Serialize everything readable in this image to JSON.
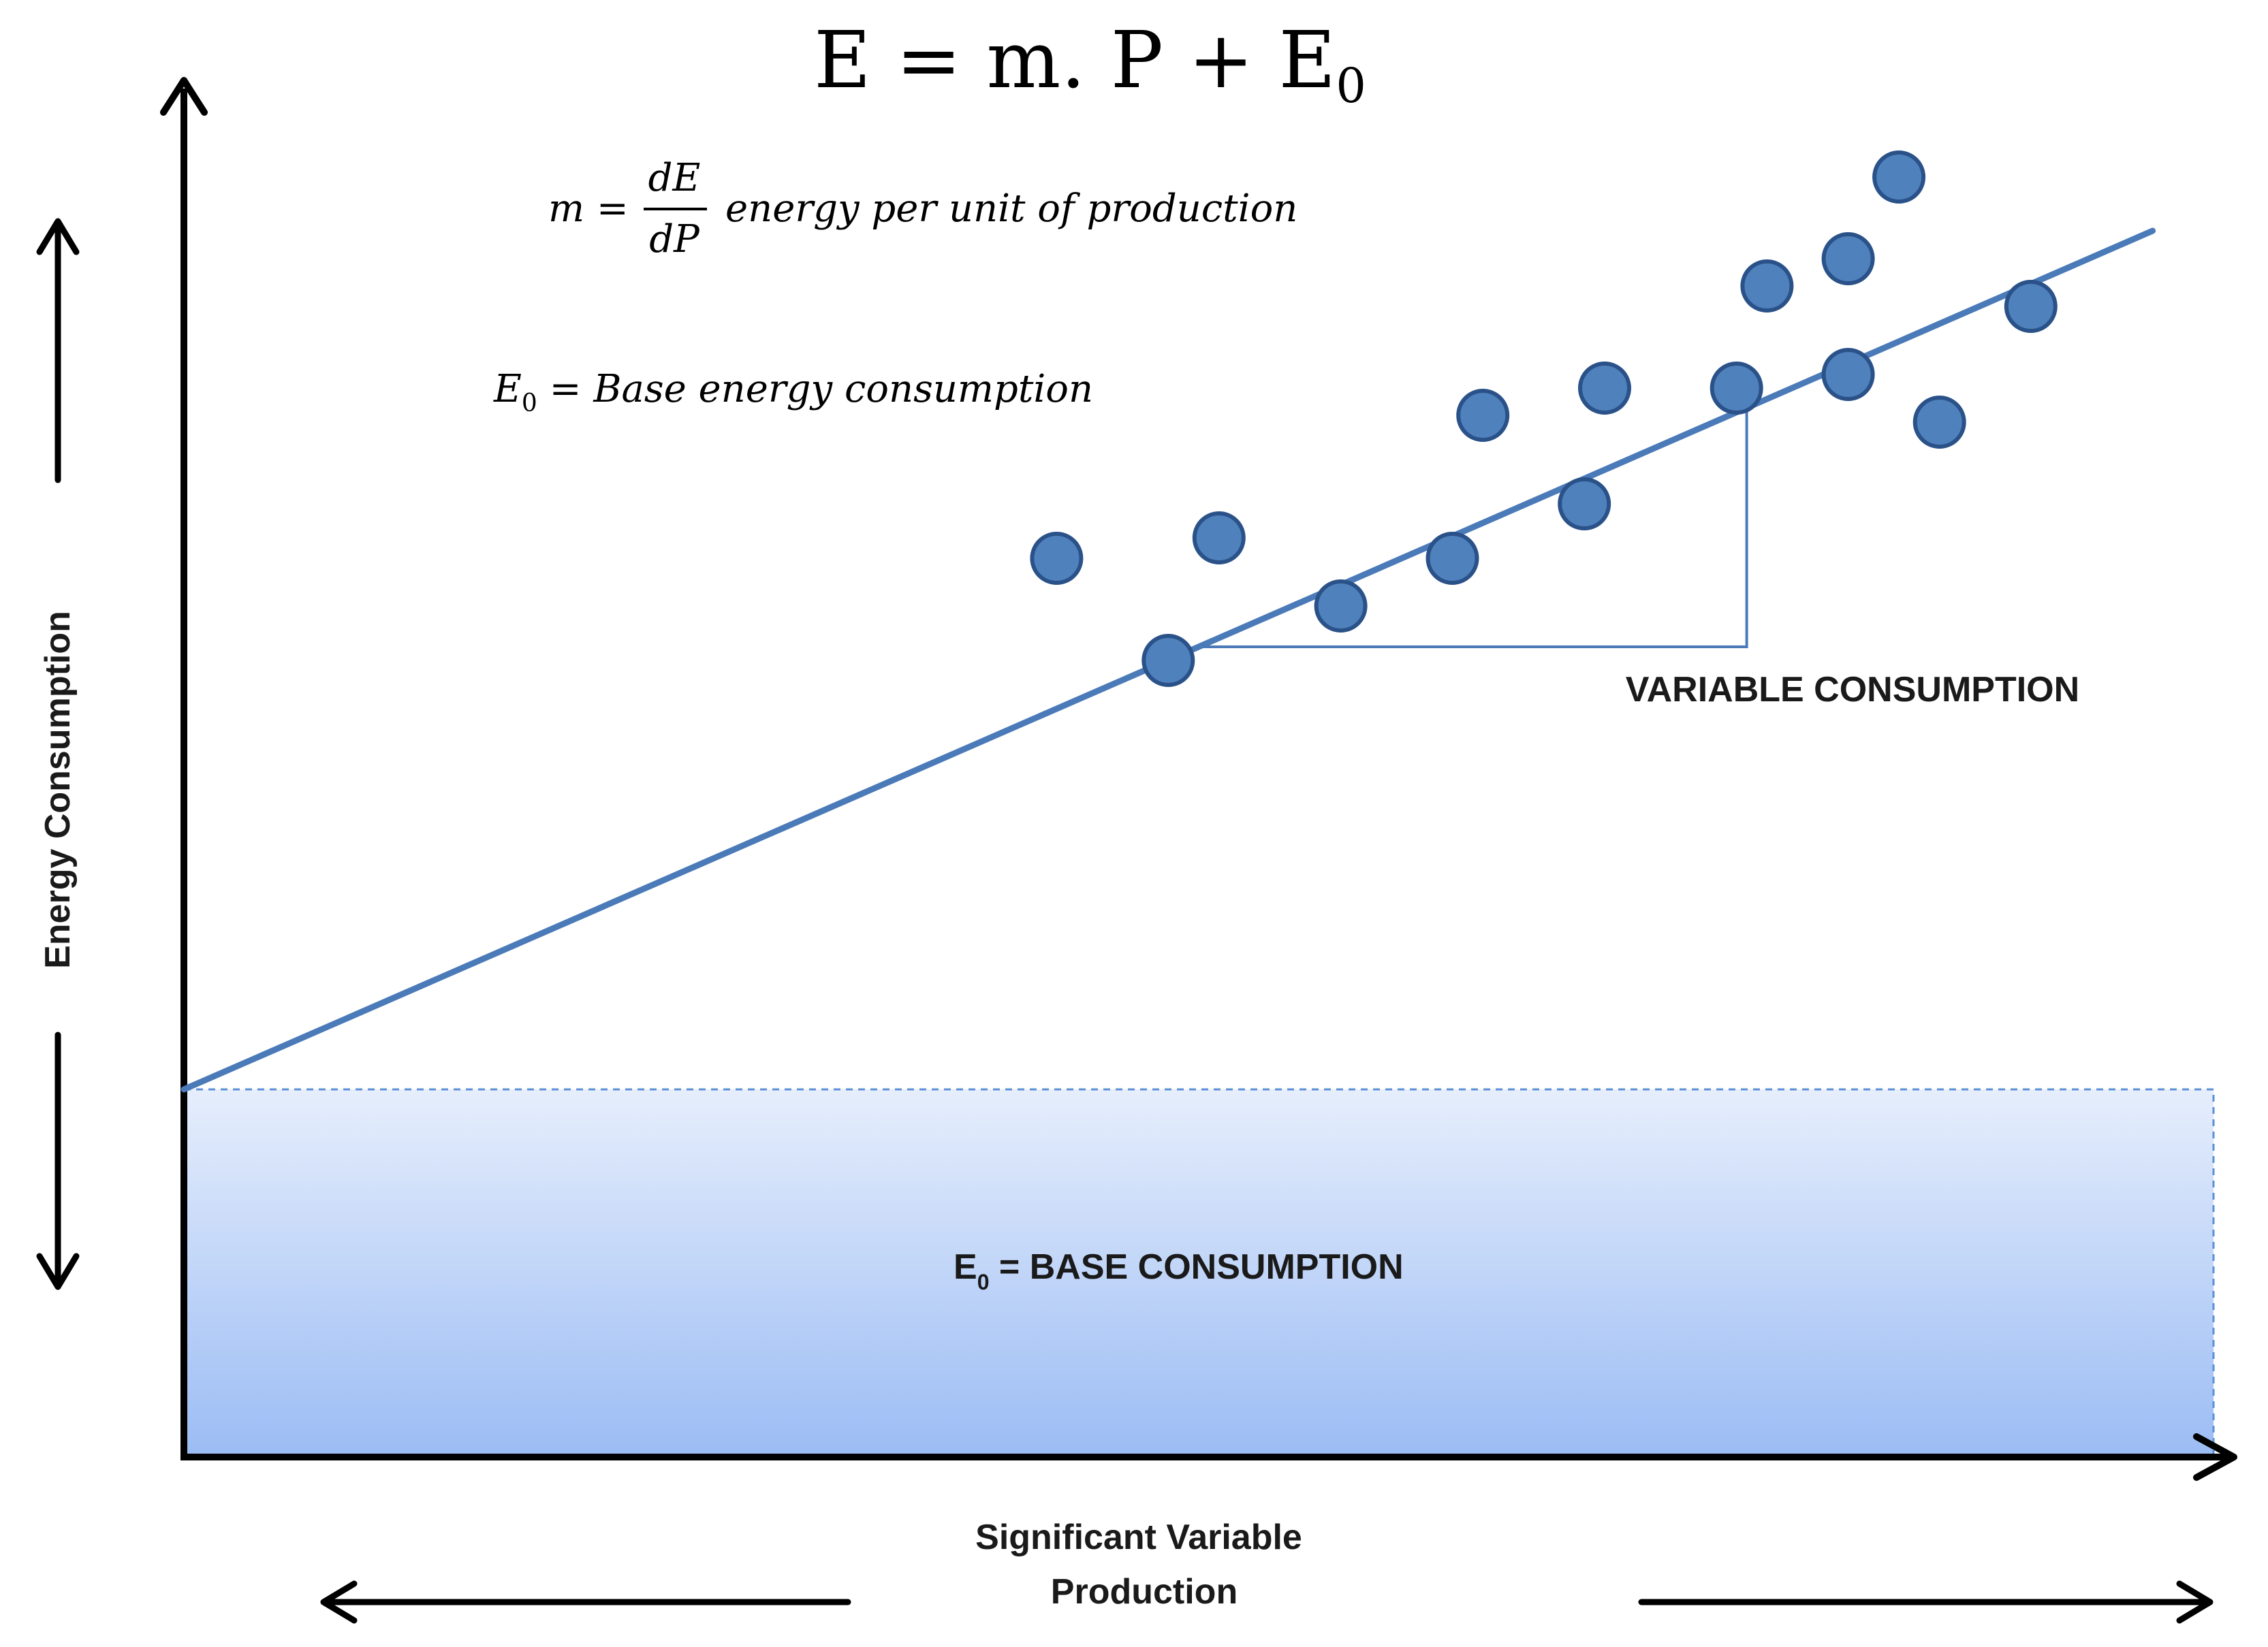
{
  "formula": {
    "main_lhs": "E = m. P + ",
    "main_sym": "E",
    "main_sub": "0"
  },
  "slope_definition": {
    "lhs": "m = ",
    "numerator": "dE",
    "denominator": "dP",
    "description": "energy per unit of production"
  },
  "base_definition": {
    "symbol": "E",
    "sub": "0",
    "rest": " = Base energy consumption"
  },
  "labels": {
    "variable_consumption": "VARIABLE CONSUMPTION",
    "base_consumption_sym": "E",
    "base_consumption_sub": "0",
    "base_consumption_rest": " = BASE CONSUMPTION",
    "y_axis": "Energy Consumption",
    "x_axis_line1": "Significant Variable",
    "x_axis_line2": "Production"
  },
  "colors": {
    "axis": "#000000",
    "line": "#4a7ab8",
    "dot_fill": "#4f81bd",
    "dot_stroke": "#2a5289",
    "base_top": "#e6eefc",
    "base_bottom": "#9bbcf4",
    "base_border": "#5b8fd6"
  },
  "chart_data": {
    "type": "scatter",
    "x_range": [
      0,
      100
    ],
    "y_range": [
      0,
      100
    ],
    "regression": {
      "intercept": 27,
      "slope": 0.65,
      "x_end": 97
    },
    "base_level": 27,
    "base_x_end": 100,
    "triangle": {
      "x1": 50,
      "x2": 77
    },
    "points": [
      {
        "x": 43,
        "y": 66
      },
      {
        "x": 48.5,
        "y": 58.5
      },
      {
        "x": 51,
        "y": 67.5
      },
      {
        "x": 57,
        "y": 62.5
      },
      {
        "x": 62.5,
        "y": 66
      },
      {
        "x": 64,
        "y": 76.5
      },
      {
        "x": 69,
        "y": 70
      },
      {
        "x": 70,
        "y": 78.5
      },
      {
        "x": 76.5,
        "y": 78.5
      },
      {
        "x": 78,
        "y": 86
      },
      {
        "x": 82,
        "y": 79.5
      },
      {
        "x": 82,
        "y": 88
      },
      {
        "x": 84.5,
        "y": 94
      },
      {
        "x": 86.5,
        "y": 76
      },
      {
        "x": 91,
        "y": 84.5
      }
    ]
  }
}
